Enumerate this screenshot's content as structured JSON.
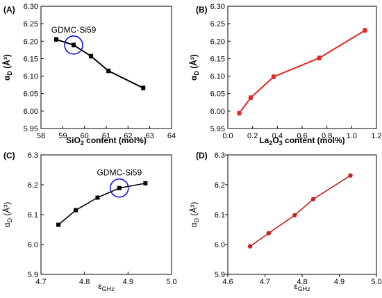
{
  "figure": {
    "panels": [
      "(A)",
      "(B)",
      "(C)",
      "(D)"
    ]
  },
  "chart_data": [
    {
      "panel": "(A)",
      "type": "line",
      "xlabel": {
        "main": "SiO",
        "sub": "2",
        "rest": " content (mol%)"
      },
      "ylabel": {
        "main": "α",
        "sub": "D",
        "rest": " (Å³)"
      },
      "xlim": [
        58,
        64
      ],
      "ylim": [
        5.95,
        6.3
      ],
      "xticks": [
        "58",
        "59",
        "60",
        "61",
        "62",
        "63",
        "64"
      ],
      "yticks": [
        "5.95",
        "6.00",
        "6.05",
        "6.10",
        "6.15",
        "6.20",
        "6.25",
        "6.30"
      ],
      "color": "#000000",
      "marker": "square",
      "error_bars": true,
      "series": [
        {
          "x": [
            58.7,
            59.5,
            60.3,
            61.1,
            62.7
          ],
          "y": [
            6.205,
            6.189,
            6.157,
            6.115,
            6.066
          ],
          "err": [
            0.006,
            0.006,
            0.006,
            0.006,
            0.006
          ]
        }
      ],
      "annotation": {
        "label": "GDMC-Si59",
        "x": 59.5,
        "y": 6.189
      }
    },
    {
      "panel": "(B)",
      "type": "line",
      "xlabel": {
        "main": "La",
        "sub": "2",
        "rest": "O",
        "sub2": "3",
        "rest2": " content (mol%)"
      },
      "ylabel": {
        "main": "α",
        "sub": "D",
        "rest": " (Å³)"
      },
      "xlim": [
        0.0,
        1.3
      ],
      "ylim": [
        5.95,
        6.3
      ],
      "xticks": [
        "0.0",
        "0.2",
        "0.4",
        "0.6",
        "0.8",
        "1.0",
        "1.2"
      ],
      "yticks": [
        "5.95",
        "6.00",
        "6.05",
        "6.10",
        "6.15",
        "6.20",
        "6.25",
        "6.30"
      ],
      "color": "#e8231d",
      "marker": "circle",
      "error_bars": true,
      "series": [
        {
          "x": [
            0.1,
            0.2,
            0.4,
            0.8,
            1.2
          ],
          "y": [
            5.994,
            6.038,
            6.098,
            6.152,
            6.231
          ],
          "err": [
            0.006,
            0.006,
            0.006,
            0.006,
            0.006
          ]
        }
      ]
    },
    {
      "panel": "(C)",
      "type": "line",
      "xlabel": {
        "main": "ε",
        "sub": "GHz"
      },
      "ylabel": {
        "main": "α",
        "sub": "D",
        "rest": " (Å³)"
      },
      "xlim": [
        4.7,
        5.0
      ],
      "ylim": [
        5.9,
        6.3
      ],
      "xticks": [
        "4.7",
        "4.8",
        "4.9",
        "5.0"
      ],
      "yticks": [
        "5.9",
        "6.0",
        "6.1",
        "6.2",
        "6.3"
      ],
      "color": "#000000",
      "marker": "square",
      "error_bars": false,
      "series": [
        {
          "x": [
            4.74,
            4.78,
            4.83,
            4.88,
            4.94
          ],
          "y": [
            6.066,
            6.115,
            6.157,
            6.189,
            6.205
          ]
        }
      ],
      "annotation": {
        "label": "GDMC-Si59",
        "x": 4.88,
        "y": 6.189
      }
    },
    {
      "panel": "(D)",
      "type": "line",
      "xlabel": {
        "main": "ε",
        "sub": "GHz"
      },
      "ylabel": {
        "main": "α",
        "sub": "D",
        "rest": " (Å³)"
      },
      "xlim": [
        4.6,
        5.0
      ],
      "ylim": [
        5.9,
        6.3
      ],
      "xticks": [
        "4.6",
        "4.7",
        "4.8",
        "4.9",
        "5.0"
      ],
      "yticks": [
        "5.9",
        "6.0",
        "6.1",
        "6.2",
        "6.3"
      ],
      "color": "#c4211c",
      "marker": "circle",
      "error_bars": false,
      "series": [
        {
          "x": [
            4.66,
            4.71,
            4.78,
            4.83,
            4.93
          ],
          "y": [
            5.994,
            6.038,
            6.098,
            6.152,
            6.231
          ]
        }
      ]
    }
  ]
}
